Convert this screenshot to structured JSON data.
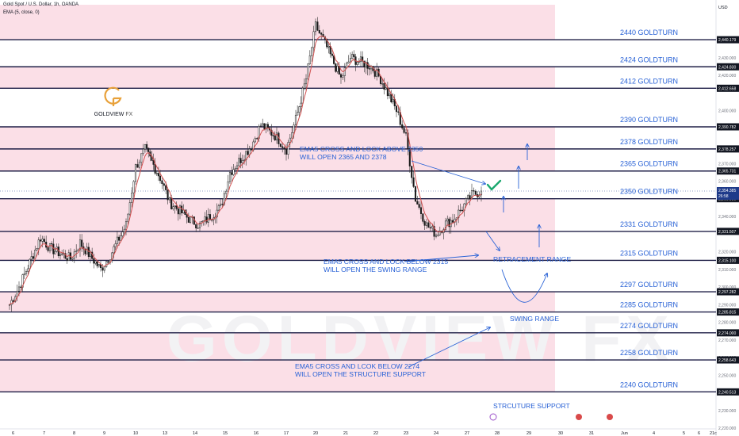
{
  "header": {
    "symbol_line": "Gold Spot / U.S. Dollar, 1h, OANDA",
    "indicator_line": "EMA (5, close, 0)"
  },
  "currency": "USD",
  "logo": {
    "brand": "GOLDVIEW",
    "suffix": "FX"
  },
  "watermark": "GOLDVIEW FX",
  "colors": {
    "zone": "#fbdfe7",
    "line": "#1e1e46",
    "label": "#2962d6",
    "candle_up": "#2f2f2f",
    "ema": "#d0504f",
    "price_badge": "#1e3a8a",
    "check": "#1aa86e"
  },
  "chart_data": {
    "type": "candlestick",
    "title": "",
    "xlabel": "",
    "ylabel": "",
    "ylim": [
      2220,
      2460
    ],
    "x_ticks": [
      "6",
      "7",
      "8",
      "9",
      "10",
      "13",
      "14",
      "15",
      "16",
      "17",
      "20",
      "21",
      "22",
      "23",
      "24",
      "27",
      "28",
      "29",
      "30",
      "31",
      "Jun",
      "4",
      "5",
      "6",
      "21c"
    ],
    "y_ticks": [
      "2,430.000",
      "2,420.000",
      "2,400.000",
      "2,390.000",
      "2,370.000",
      "2,360.000",
      "2,340.000",
      "2,320.000",
      "2,310.000",
      "2,300.000",
      "2,290.000",
      "2,280.000",
      "2,270.000",
      "2,260.000",
      "2,250.000",
      "2,230.000",
      "2,220.000"
    ],
    "levels": [
      {
        "value": 2440.179,
        "price_label": "2,440.179",
        "label": "2440 GOLDTURN"
      },
      {
        "value": 2424.83,
        "price_label": "2,424.830",
        "label": "2424 GOLDTURN"
      },
      {
        "value": 2412.658,
        "price_label": "2,412.658",
        "label": "2412 GOLDTURN"
      },
      {
        "value": 2390.782,
        "price_label": "2,390.782",
        "label": "2390 GOLDTURN"
      },
      {
        "value": 2378.257,
        "price_label": "2,378.257",
        "label": "2378 GOLDTURN"
      },
      {
        "value": 2365.731,
        "price_label": "2,365.731",
        "label": "2365 GOLDTURN"
      },
      {
        "value": 2350.03,
        "price_label": "2,350.030",
        "label": "2350 GOLDTURN"
      },
      {
        "value": 2331.507,
        "price_label": "2,331.507",
        "label": "2331 GOLDTURN"
      },
      {
        "value": 2315.1,
        "price_label": "2,315.100",
        "label": "2315 GOLDTURN"
      },
      {
        "value": 2297.282,
        "price_label": "2,297.282",
        "label": "2297 GOLDTURN"
      },
      {
        "value": 2285.815,
        "price_label": "2,285.815",
        "label": "2285 GOLDTURN"
      },
      {
        "value": 2274.0,
        "price_label": "2,274.000",
        "label": "2274 GOLDTURN"
      },
      {
        "value": 2258.643,
        "price_label": "2,258.643",
        "label": "2258 GOLDTURN"
      },
      {
        "value": 2240.513,
        "price_label": "2,240.513",
        "label": "2240 GOLDTURN"
      }
    ],
    "shaded_zones": [
      [
        2440.179,
        2460
      ],
      [
        2412.658,
        2424.83
      ],
      [
        2365.731,
        2390.782
      ],
      [
        2315.1,
        2350.03
      ],
      [
        2285.815,
        2297.282
      ],
      [
        2240.513,
        2274.0
      ]
    ],
    "current_price": {
      "value": 2354.385,
      "label": "2,354.385",
      "countdown": "26:58"
    },
    "close_path": [
      [
        "6",
        2290
      ],
      [
        "6",
        2300
      ],
      [
        "7",
        2328
      ],
      [
        "7",
        2322
      ],
      [
        "8",
        2316
      ],
      [
        "8",
        2325
      ],
      [
        "9",
        2310
      ],
      [
        "9",
        2318
      ],
      [
        "10",
        2335
      ],
      [
        "10",
        2368
      ],
      [
        "10",
        2378
      ],
      [
        "13",
        2362
      ],
      [
        "13",
        2348
      ],
      [
        "14",
        2338
      ],
      [
        "14",
        2335
      ],
      [
        "15",
        2345
      ],
      [
        "15",
        2365
      ],
      [
        "16",
        2380
      ],
      [
        "16",
        2392
      ],
      [
        "17",
        2385
      ],
      [
        "17",
        2378
      ],
      [
        "17",
        2395
      ],
      [
        "20",
        2418
      ],
      [
        "20",
        2448
      ],
      [
        "20",
        2438
      ],
      [
        "21",
        2418
      ],
      [
        "21",
        2430
      ],
      [
        "22",
        2425
      ],
      [
        "22",
        2418
      ],
      [
        "23",
        2400
      ],
      [
        "23",
        2385
      ],
      [
        "23",
        2350
      ],
      [
        "24",
        2335
      ],
      [
        "24",
        2330
      ],
      [
        "24",
        2336
      ],
      [
        "27",
        2338
      ],
      [
        "27",
        2345
      ],
      [
        "27",
        2352
      ],
      [
        "27",
        2354.385
      ]
    ]
  },
  "annotations": {
    "ema_above": "EMA5 CROSS AND LOCK ABOVE 2350\nWILL OPEN 2365 AND 2378",
    "ema_below_2315": "EMA5 CROSS AND LOCK BELOW 2315\nWILL OPEN THE SWING RANGE",
    "ema_below_2274": "EMA5 CROSS AND LCOK BELOW 2274\nWILL OPEN THE STRUCTURE SUPPORT",
    "retracement": "RETRACEMENT RANGE",
    "swing": "SWING RANGE",
    "structure": "STRCUTURE SUPPORT"
  }
}
